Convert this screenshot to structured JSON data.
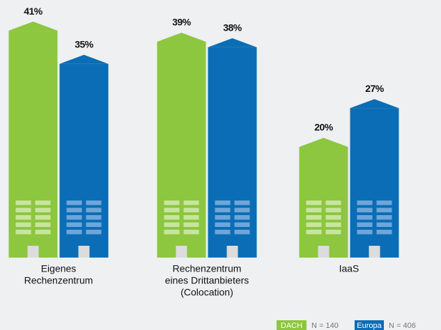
{
  "chart_data": {
    "type": "building-bar",
    "categories": [
      [
        "Eigenes",
        "Rechenzentrum"
      ],
      [
        "Rechenzentrum",
        "eines Drittanbieters",
        "(Colocation)"
      ],
      [
        "IaaS"
      ]
    ],
    "series": [
      {
        "name": "DACH",
        "sample_label": "N = 140",
        "color": "#8dc63f",
        "values": [
          41,
          39,
          20
        ],
        "value_labels": [
          "41%",
          "39%",
          "20%"
        ]
      },
      {
        "name": "Europa",
        "sample_label": "N = 406",
        "color": "#0b6db5",
        "values": [
          35,
          38,
          27
        ],
        "value_labels": [
          "35%",
          "38%",
          "27%"
        ]
      }
    ]
  }
}
